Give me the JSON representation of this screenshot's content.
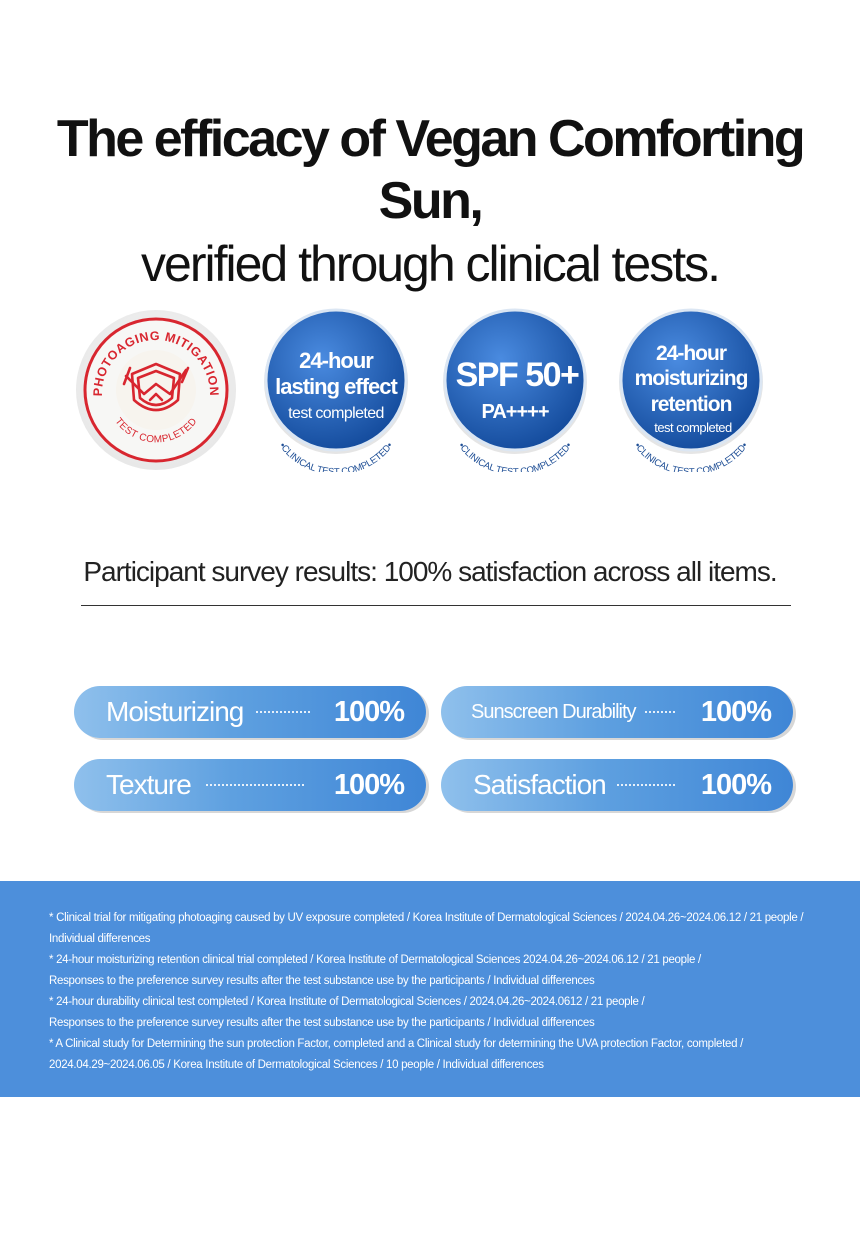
{
  "headline": {
    "line1": "The efficacy of Vegan Comforting Sun,",
    "line2": "verified through clinical tests."
  },
  "badges": [
    {
      "type": "red-seal",
      "arc_top": "PHOTOAGING MITIGATION",
      "arc_bottom": "TEST COMPLETED",
      "icon": "shield-sun-icon"
    },
    {
      "type": "blue",
      "line1": "24-hour",
      "line2": "lasting effect",
      "line3": "test completed",
      "ring": "•CLINICAL TEST COMPLETED•"
    },
    {
      "type": "blue",
      "line1": "SPF 50+",
      "line2": "PA++++",
      "ring": "•CLINICAL TEST COMPLETED•"
    },
    {
      "type": "blue",
      "line1": "24-hour",
      "line2": "moisturizing",
      "line3": "retention",
      "line4": "test completed",
      "ring": "•CLINICAL TEST COMPLETED•"
    }
  ],
  "survey": {
    "title": "Participant survey results: 100% satisfaction across all items.",
    "items": [
      {
        "label": "Moisturizing",
        "value": "100%"
      },
      {
        "label": "Sunscreen Durability",
        "value": "100%"
      },
      {
        "label": "Texture",
        "value": "100%"
      },
      {
        "label": "Satisfaction",
        "value": "100%"
      }
    ]
  },
  "notes": [
    "* Clinical trial for mitigating photoaging caused by UV exposure completed / Korea Institute of Dermatological Sciences / 2024.04.26~2024.06.12 / 21 people /",
    "Individual differences",
    "* 24-hour moisturizing retention clinical trial completed / Korea Institute of Dermatological Sciences 2024.04.26~2024.06.12 / 21 people /",
    "Responses to the preference survey results after the test substance use by the participants / Individual differences",
    "* 24-hour durability clinical test completed / Korea Institute of Dermatological Sciences / 2024.04.26~2024.0612 / 21 people /",
    "Responses to the preference survey results after the test substance use by the participants / Individual differences",
    "* A Clinical study for Determining the sun protection Factor, completed and a Clinical study for determining the UVA protection Factor, completed /",
    "2024.04.29~2024.06.05 / Korea Institute of Dermatological Sciences / 10 people / Individual differences"
  ],
  "colors": {
    "accent_blue": "#4d8fdb",
    "badge_blue": "#1f5fae",
    "seal_red": "#d8262f"
  }
}
